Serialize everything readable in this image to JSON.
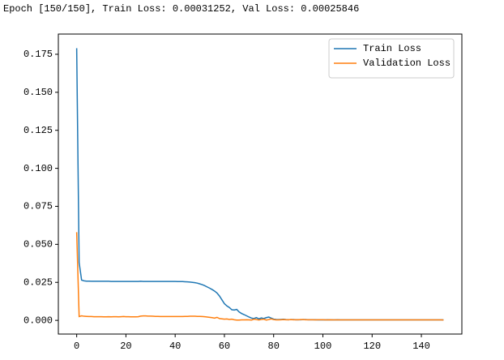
{
  "log_text": "Epoch [150/150], Train Loss: 0.00031252, Val Loss: 0.00025846",
  "chart_data": {
    "type": "line",
    "x": [
      0,
      1,
      2,
      3,
      4,
      5,
      6,
      7,
      8,
      9,
      10,
      11,
      12,
      13,
      14,
      15,
      16,
      17,
      18,
      19,
      20,
      21,
      22,
      23,
      24,
      25,
      26,
      27,
      28,
      29,
      30,
      31,
      32,
      33,
      34,
      35,
      36,
      37,
      38,
      39,
      40,
      41,
      42,
      43,
      44,
      45,
      46,
      47,
      48,
      49,
      50,
      51,
      52,
      53,
      54,
      55,
      56,
      57,
      58,
      59,
      60,
      61,
      62,
      63,
      64,
      65,
      66,
      67,
      68,
      69,
      70,
      71,
      72,
      73,
      74,
      75,
      76,
      77,
      78,
      79,
      80,
      81,
      82,
      83,
      84,
      85,
      86,
      87,
      88,
      89,
      90,
      91,
      92,
      93,
      94,
      95,
      96,
      97,
      98,
      99,
      100,
      101,
      102,
      103,
      104,
      105,
      106,
      107,
      108,
      109,
      110,
      111,
      112,
      113,
      114,
      115,
      116,
      117,
      118,
      119,
      120,
      121,
      122,
      123,
      124,
      125,
      126,
      127,
      128,
      129,
      130,
      131,
      132,
      133,
      134,
      135,
      136,
      137,
      138,
      139,
      140,
      141,
      142,
      143,
      144,
      145,
      146,
      147,
      148,
      149
    ],
    "series": [
      {
        "name": "Train Loss",
        "color": "#1f77b4",
        "values": [
          0.179,
          0.038,
          0.0265,
          0.026,
          0.0258,
          0.0258,
          0.0257,
          0.0257,
          0.0257,
          0.0257,
          0.0257,
          0.0257,
          0.0257,
          0.0257,
          0.0256,
          0.0256,
          0.0256,
          0.0256,
          0.0256,
          0.0256,
          0.0256,
          0.0256,
          0.0256,
          0.0256,
          0.0256,
          0.0256,
          0.0257,
          0.0256,
          0.0256,
          0.0256,
          0.0256,
          0.0256,
          0.0256,
          0.0256,
          0.0256,
          0.0256,
          0.0256,
          0.0256,
          0.0256,
          0.0256,
          0.0256,
          0.0255,
          0.0255,
          0.0255,
          0.0254,
          0.0253,
          0.0252,
          0.025,
          0.0248,
          0.0245,
          0.024,
          0.0235,
          0.0228,
          0.022,
          0.0212,
          0.0203,
          0.0193,
          0.018,
          0.016,
          0.0135,
          0.011,
          0.0095,
          0.0085,
          0.007,
          0.0068,
          0.0072,
          0.0055,
          0.0045,
          0.0038,
          0.003,
          0.0022,
          0.0015,
          0.0012,
          0.0018,
          0.001,
          0.0016,
          0.0012,
          0.0018,
          0.0022,
          0.0015,
          0.0008,
          0.0006,
          0.0005,
          0.0006,
          0.0007,
          0.0005,
          0.0004,
          0.0005,
          0.0005,
          0.0004,
          0.0004,
          0.0004,
          0.0005,
          0.0005,
          0.0004,
          0.0004,
          0.0004,
          0.0004,
          0.0003,
          0.0003,
          0.0003,
          0.0003,
          0.0004,
          0.0003,
          0.0003,
          0.0003,
          0.0004,
          0.0003,
          0.0003,
          0.0003,
          0.0003,
          0.0003,
          0.0003,
          0.0003,
          0.0003,
          0.0003,
          0.0003,
          0.0003,
          0.0003,
          0.0003,
          0.0003,
          0.0003,
          0.0003,
          0.0003,
          0.0003,
          0.0003,
          0.0003,
          0.0003,
          0.0003,
          0.0003,
          0.0003,
          0.0003,
          0.0003,
          0.0003,
          0.0003,
          0.0003,
          0.0003,
          0.0003,
          0.0003,
          0.0003,
          0.0003,
          0.0003,
          0.0003,
          0.0003,
          0.0003,
          0.0003,
          0.0003,
          0.0003,
          0.0003,
          0.00031252
        ]
      },
      {
        "name": "Validation Loss",
        "color": "#ff7f0e",
        "values": [
          0.058,
          0.0025,
          0.003,
          0.0027,
          0.0026,
          0.0025,
          0.0025,
          0.0024,
          0.0024,
          0.0024,
          0.0024,
          0.0023,
          0.0023,
          0.0024,
          0.0023,
          0.0024,
          0.0024,
          0.0023,
          0.0024,
          0.0025,
          0.0024,
          0.0024,
          0.0023,
          0.0023,
          0.0023,
          0.0024,
          0.0028,
          0.0029,
          0.0029,
          0.0028,
          0.0028,
          0.0027,
          0.0026,
          0.0026,
          0.0025,
          0.0025,
          0.0025,
          0.0025,
          0.0025,
          0.0025,
          0.0025,
          0.0025,
          0.0025,
          0.0025,
          0.0026,
          0.0026,
          0.0027,
          0.0027,
          0.0027,
          0.0026,
          0.0026,
          0.0025,
          0.0024,
          0.0022,
          0.002,
          0.0018,
          0.0015,
          0.002,
          0.0012,
          0.001,
          0.0008,
          0.0009,
          0.0006,
          0.0008,
          0.0004,
          0.0002,
          0.0002,
          0.0003,
          0.0003,
          0.0004,
          0.0003,
          0.0002,
          0.0008,
          0.0005,
          0.0003,
          0.0006,
          0.0008,
          0.0002,
          0.0005,
          0.001,
          0.0005,
          0.0003,
          0.0003,
          0.0004,
          0.0005,
          0.0004,
          0.0004,
          0.0005,
          0.0004,
          0.0004,
          0.0004,
          0.0005,
          0.0005,
          0.0004,
          0.0004,
          0.0004,
          0.0004,
          0.0003,
          0.0004,
          0.0004,
          0.0004,
          0.0003,
          0.0003,
          0.0004,
          0.0003,
          0.0003,
          0.0003,
          0.0003,
          0.0003,
          0.0003,
          0.0003,
          0.0003,
          0.0003,
          0.0003,
          0.0003,
          0.0003,
          0.0003,
          0.0003,
          0.0003,
          0.0003,
          0.0003,
          0.0003,
          0.0003,
          0.0003,
          0.0003,
          0.0003,
          0.0003,
          0.0003,
          0.0003,
          0.0003,
          0.0003,
          0.0003,
          0.0003,
          0.0003,
          0.0003,
          0.0003,
          0.0003,
          0.0003,
          0.0003,
          0.0003,
          0.0003,
          0.0003,
          0.0003,
          0.0003,
          0.0003,
          0.0003,
          0.0003,
          0.0003,
          0.0003,
          0.00025846
        ]
      }
    ],
    "xlim": [
      -7.45,
      156.45
    ],
    "ylim": [
      -0.009,
      0.1883
    ],
    "xticks": [
      0,
      20,
      40,
      60,
      80,
      100,
      120,
      140
    ],
    "yticks": [
      {
        "value": 0,
        "label": "0.000"
      },
      {
        "value": 0.025,
        "label": "0.025"
      },
      {
        "value": 0.05,
        "label": "0.050"
      },
      {
        "value": 0.075,
        "label": "0.075"
      },
      {
        "value": 0.1,
        "label": "0.100"
      },
      {
        "value": 0.125,
        "label": "0.125"
      },
      {
        "value": 0.15,
        "label": "0.150"
      },
      {
        "value": 0.175,
        "label": "0.175"
      }
    ],
    "grid": false,
    "legend": "upper right"
  }
}
